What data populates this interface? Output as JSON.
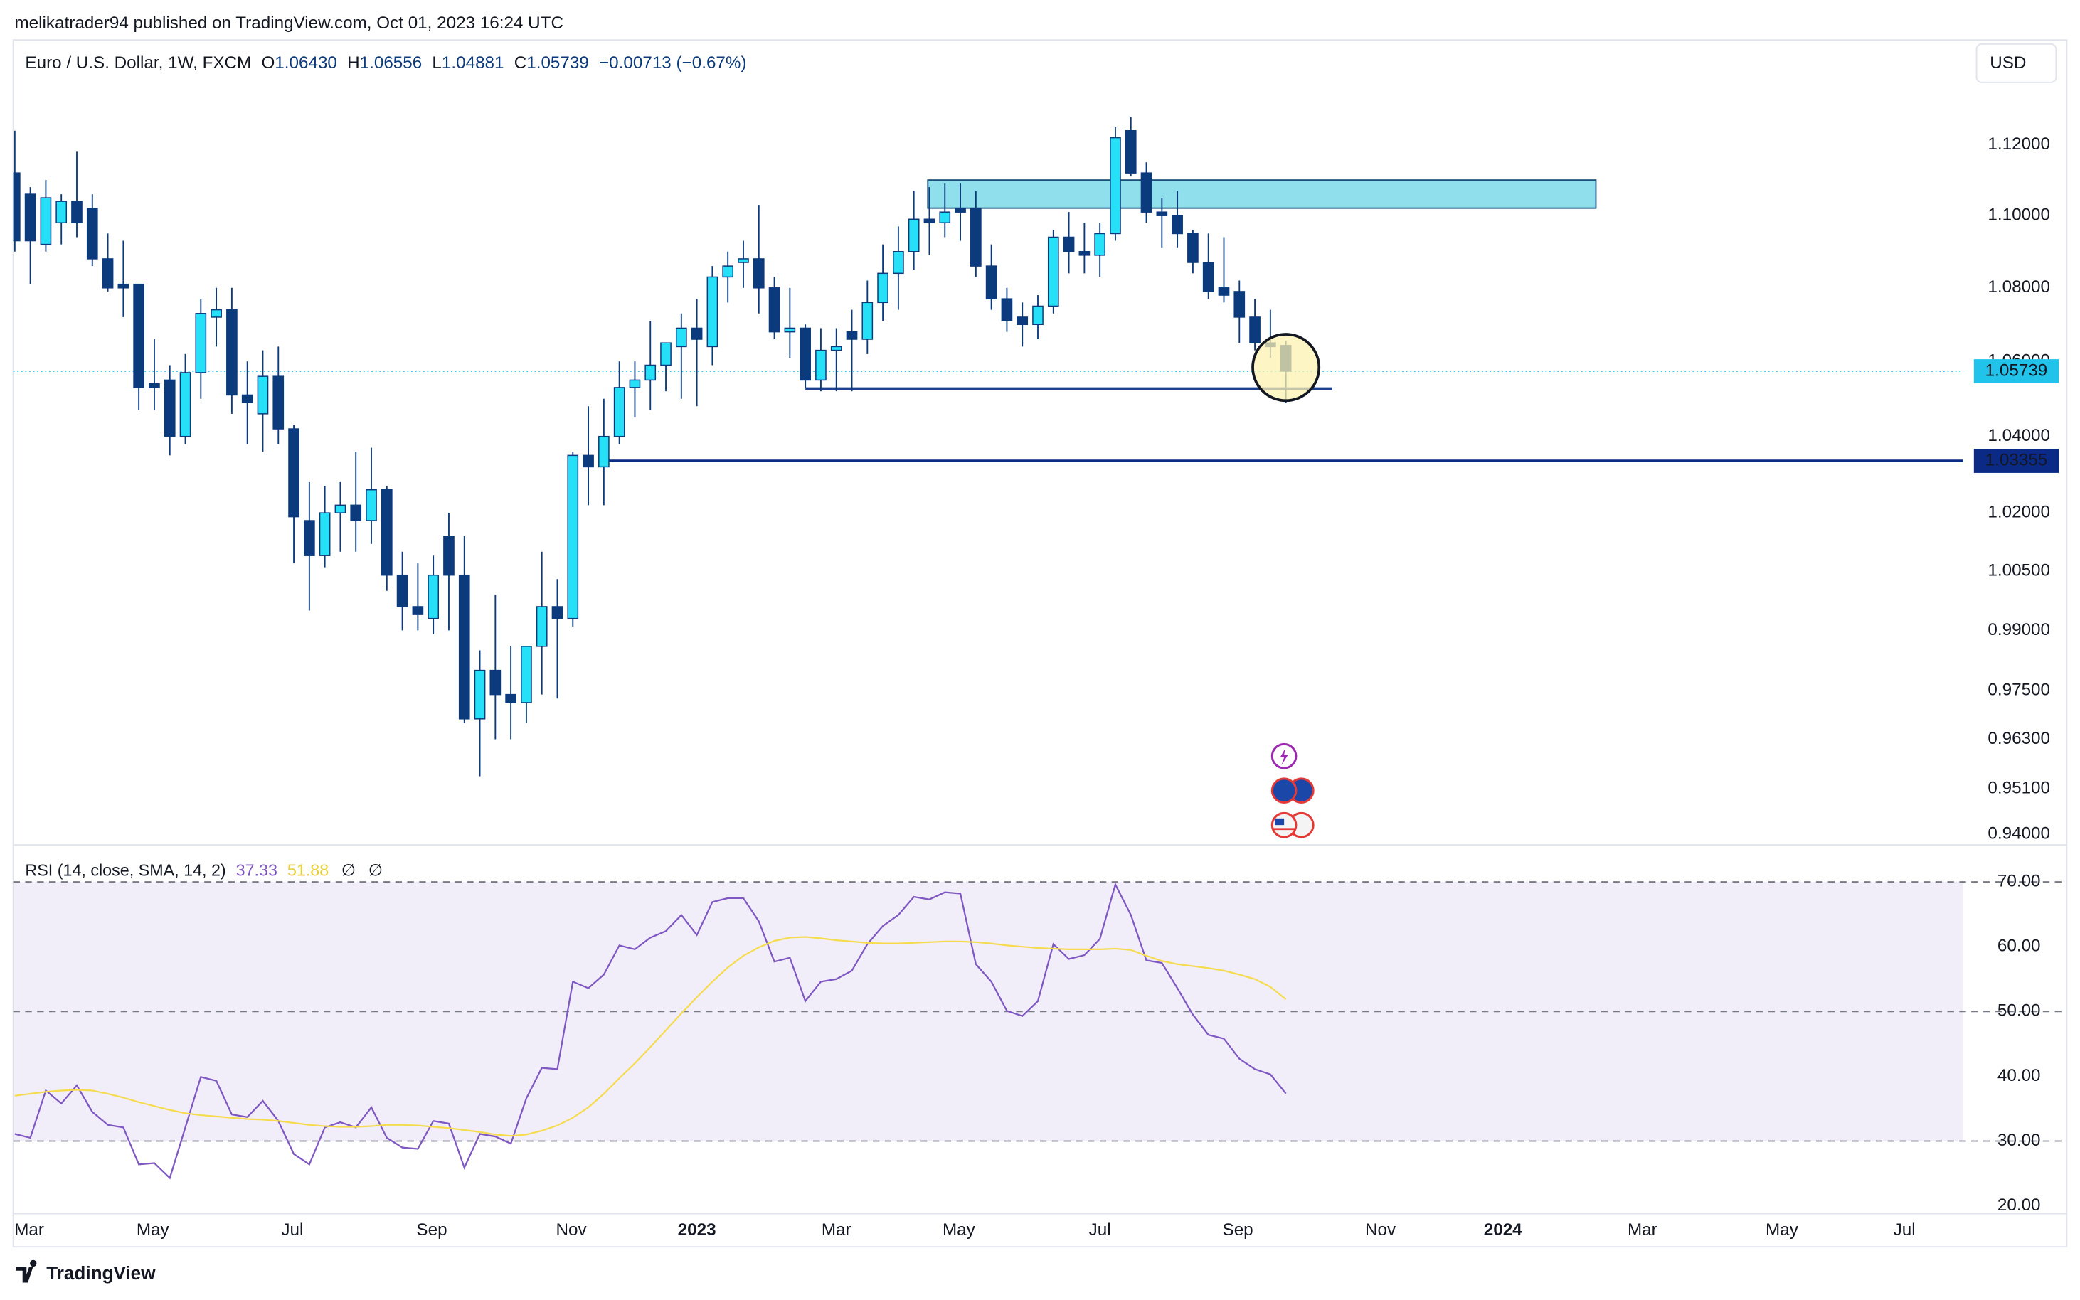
{
  "header": {
    "publisher": "melikatrader94 published on TradingView.com, Oct 01, 2023 16:24 UTC",
    "symbol": "Euro / U.S. Dollar, 1W, FXCM",
    "ohlc": [
      {
        "key": "O",
        "value": "1.06430"
      },
      {
        "key": "H",
        "value": "1.06556"
      },
      {
        "key": "L",
        "value": "1.04881"
      },
      {
        "key": "C",
        "value": "1.05739"
      }
    ],
    "change": "−0.00713 (−0.67%)",
    "currency": "USD",
    "footer": "TradingView"
  },
  "chart_data": [
    {
      "type": "candlestick",
      "log": true,
      "up_color": "#25e0f7",
      "down_color": "#0b3a7d",
      "ylim": [
        0.9378,
        1.1502
      ],
      "yticks": [
        {
          "value": 1.12,
          "label": "1.12000"
        },
        {
          "value": 1.1,
          "label": "1.10000"
        },
        {
          "value": 1.08,
          "label": "1.08000"
        },
        {
          "value": 1.06,
          "label": "1.06000"
        },
        {
          "value": 1.04,
          "label": "1.04000"
        },
        {
          "value": 1.02,
          "label": "1.02000"
        },
        {
          "value": 1.005,
          "label": "1.00500"
        },
        {
          "value": 0.99,
          "label": "0.99000"
        },
        {
          "value": 0.975,
          "label": "0.97500"
        },
        {
          "value": 0.963,
          "label": "0.96300"
        },
        {
          "value": 0.951,
          "label": "0.95100"
        },
        {
          "value": 0.94,
          "label": "0.94000"
        }
      ],
      "xlim": [
        -0.1,
        125.7
      ],
      "xticks": [
        {
          "value": 0.93,
          "label": "Mar"
        },
        {
          "value": 8.9,
          "label": "May"
        },
        {
          "value": 17.9,
          "label": "Jul"
        },
        {
          "value": 26.9,
          "label": "Sep"
        },
        {
          "value": 35.9,
          "label": "Nov"
        },
        {
          "value": 44.0,
          "label": "2023"
        },
        {
          "value": 53.0,
          "label": "Mar"
        },
        {
          "value": 60.9,
          "label": "May"
        },
        {
          "value": 70.0,
          "label": "Jul"
        },
        {
          "value": 78.9,
          "label": "Sep"
        },
        {
          "value": 88.1,
          "label": "Nov"
        },
        {
          "value": 96.0,
          "label": "2024"
        },
        {
          "value": 105.0,
          "label": "Mar"
        },
        {
          "value": 114.0,
          "label": "May"
        },
        {
          "value": 121.9,
          "label": "Jul"
        }
      ],
      "candles": [
        [
          1.112,
          1.124,
          1.09,
          1.093
        ],
        [
          1.106,
          1.108,
          1.081,
          1.093
        ],
        [
          1.092,
          1.11,
          1.09,
          1.105
        ],
        [
          1.098,
          1.106,
          1.092,
          1.104
        ],
        [
          1.104,
          1.118,
          1.094,
          1.098
        ],
        [
          1.102,
          1.106,
          1.086,
          1.088
        ],
        [
          1.088,
          1.095,
          1.079,
          1.08
        ],
        [
          1.081,
          1.093,
          1.072,
          1.08
        ],
        [
          1.081,
          1.081,
          1.047,
          1.053
        ],
        [
          1.054,
          1.066,
          1.047,
          1.053
        ],
        [
          1.055,
          1.059,
          1.035,
          1.04
        ],
        [
          1.04,
          1.062,
          1.038,
          1.057
        ],
        [
          1.057,
          1.077,
          1.05,
          1.073
        ],
        [
          1.072,
          1.08,
          1.064,
          1.074
        ],
        [
          1.074,
          1.08,
          1.046,
          1.051
        ],
        [
          1.051,
          1.06,
          1.038,
          1.049
        ],
        [
          1.046,
          1.063,
          1.036,
          1.056
        ],
        [
          1.056,
          1.064,
          1.038,
          1.042
        ],
        [
          1.042,
          1.043,
          1.007,
          1.019
        ],
        [
          1.018,
          1.028,
          0.995,
          1.009
        ],
        [
          1.009,
          1.027,
          1.006,
          1.02
        ],
        [
          1.02,
          1.028,
          1.01,
          1.022
        ],
        [
          1.022,
          1.036,
          1.01,
          1.018
        ],
        [
          1.018,
          1.037,
          1.012,
          1.026
        ],
        [
          1.026,
          1.027,
          1.0,
          1.004
        ],
        [
          1.004,
          1.01,
          0.99,
          0.996
        ],
        [
          0.996,
          1.007,
          0.99,
          0.994
        ],
        [
          0.993,
          1.009,
          0.989,
          1.004
        ],
        [
          1.014,
          1.02,
          0.99,
          1.004
        ],
        [
          1.004,
          1.014,
          0.967,
          0.968
        ],
        [
          0.968,
          0.985,
          0.954,
          0.98
        ],
        [
          0.98,
          0.999,
          0.963,
          0.974
        ],
        [
          0.974,
          0.986,
          0.963,
          0.972
        ],
        [
          0.972,
          0.986,
          0.967,
          0.986
        ],
        [
          0.986,
          1.01,
          0.974,
          0.996
        ],
        [
          0.996,
          1.003,
          0.973,
          0.993
        ],
        [
          0.993,
          1.036,
          0.991,
          1.035
        ],
        [
          1.035,
          1.048,
          1.022,
          1.032
        ],
        [
          1.032,
          1.05,
          1.022,
          1.04
        ],
        [
          1.04,
          1.06,
          1.038,
          1.053
        ],
        [
          1.053,
          1.06,
          1.045,
          1.055
        ],
        [
          1.055,
          1.071,
          1.047,
          1.059
        ],
        [
          1.059,
          1.064,
          1.052,
          1.065
        ],
        [
          1.064,
          1.073,
          1.05,
          1.069
        ],
        [
          1.069,
          1.077,
          1.048,
          1.066
        ],
        [
          1.064,
          1.086,
          1.059,
          1.083
        ],
        [
          1.083,
          1.09,
          1.076,
          1.086
        ],
        [
          1.087,
          1.093,
          1.08,
          1.088
        ],
        [
          1.088,
          1.103,
          1.073,
          1.08
        ],
        [
          1.08,
          1.083,
          1.066,
          1.068
        ],
        [
          1.068,
          1.08,
          1.061,
          1.069
        ],
        [
          1.069,
          1.07,
          1.053,
          1.055
        ],
        [
          1.055,
          1.069,
          1.052,
          1.063
        ],
        [
          1.063,
          1.069,
          1.052,
          1.064
        ],
        [
          1.068,
          1.074,
          1.052,
          1.066
        ],
        [
          1.066,
          1.082,
          1.062,
          1.076
        ],
        [
          1.076,
          1.092,
          1.071,
          1.084
        ],
        [
          1.084,
          1.097,
          1.074,
          1.09
        ],
        [
          1.09,
          1.107,
          1.085,
          1.099
        ],
        [
          1.099,
          1.108,
          1.089,
          1.098
        ],
        [
          1.098,
          1.109,
          1.094,
          1.101
        ],
        [
          1.102,
          1.109,
          1.093,
          1.101
        ],
        [
          1.102,
          1.107,
          1.083,
          1.086
        ],
        [
          1.086,
          1.092,
          1.074,
          1.077
        ],
        [
          1.077,
          1.08,
          1.068,
          1.071
        ],
        [
          1.072,
          1.076,
          1.064,
          1.07
        ],
        [
          1.07,
          1.078,
          1.066,
          1.075
        ],
        [
          1.075,
          1.096,
          1.073,
          1.094
        ],
        [
          1.094,
          1.101,
          1.084,
          1.09
        ],
        [
          1.09,
          1.098,
          1.084,
          1.089
        ],
        [
          1.089,
          1.098,
          1.083,
          1.095
        ],
        [
          1.095,
          1.125,
          1.093,
          1.122
        ],
        [
          1.124,
          1.128,
          1.111,
          1.112
        ],
        [
          1.112,
          1.115,
          1.098,
          1.101
        ],
        [
          1.101,
          1.105,
          1.091,
          1.1
        ],
        [
          1.1,
          1.107,
          1.091,
          1.095
        ],
        [
          1.095,
          1.096,
          1.084,
          1.087
        ],
        [
          1.087,
          1.095,
          1.077,
          1.079
        ],
        [
          1.08,
          1.094,
          1.076,
          1.078
        ],
        [
          1.079,
          1.082,
          1.065,
          1.072
        ],
        [
          1.072,
          1.077,
          1.063,
          1.065
        ],
        [
          1.065,
          1.074,
          1.061,
          1.064
        ],
        [
          1.0643,
          1.06556,
          1.04881,
          1.05739
        ]
      ],
      "zone": {
        "from": 58.9,
        "to": 102.0,
        "top": 1.11,
        "bottom": 1.1021,
        "color": "#8fe0ec"
      },
      "levels": [
        {
          "price": 1.0527,
          "from": 51.0,
          "to": 85.0,
          "color": "#1f3f8f"
        },
        {
          "price": 1.03355,
          "from": 38.0,
          "to": 125.7,
          "color": "#0b2a86",
          "label": "1.03355"
        }
      ],
      "last_price_color": "#22c3ea",
      "marker": {
        "index": 82,
        "price": 1.0584,
        "color": "#fdf1b0"
      }
    },
    {
      "type": "line",
      "title": "RSI (14, close, SMA, 14, 2)",
      "flags": [
        "∅",
        "∅"
      ],
      "ylim": [
        18.8,
        75.5
      ],
      "yticks": [
        {
          "value": 70,
          "label": "70.00"
        },
        {
          "value": 60,
          "label": "60.00"
        },
        {
          "value": 50,
          "label": "50.00"
        },
        {
          "value": 40,
          "label": "40.00"
        },
        {
          "value": 30,
          "label": "30.00"
        },
        {
          "value": 20,
          "label": "20.00"
        }
      ],
      "band": {
        "upper": 70,
        "middle": 50,
        "lower": 30,
        "color": "#7e57c2"
      },
      "series": [
        {
          "color": "#7e57c2",
          "values": [
            31.1,
            30.5,
            37.8,
            35.8,
            38.6,
            34.5,
            32.5,
            32.1,
            26.4,
            26.6,
            24.3,
            32.1,
            39.9,
            39.3,
            34.1,
            33.7,
            36.2,
            33.1,
            28.0,
            26.4,
            32.1,
            32.9,
            32.1,
            35.2,
            30.5,
            29.0,
            28.8,
            33.1,
            32.7,
            25.9,
            31.1,
            30.7,
            29.6,
            36.6,
            41.3,
            41.1,
            54.6,
            53.6,
            55.7,
            60.2,
            59.6,
            61.4,
            62.4,
            64.9,
            61.8,
            66.9,
            67.5,
            67.5,
            63.9,
            57.7,
            58.3,
            51.6,
            54.6,
            55.0,
            56.3,
            60.4,
            63.2,
            64.9,
            67.7,
            67.3,
            68.4,
            68.2,
            57.3,
            54.6,
            50.1,
            49.3,
            51.6,
            60.4,
            58.1,
            58.7,
            61.2,
            69.6,
            64.9,
            57.9,
            57.5,
            53.6,
            49.5,
            46.4,
            45.8,
            42.7,
            41.1,
            40.3,
            37.33
          ]
        },
        {
          "color": "#f5dc4f",
          "values": [
            37.0,
            37.3,
            37.6,
            37.8,
            37.9,
            37.8,
            37.3,
            36.7,
            36.0,
            35.4,
            34.8,
            34.3,
            34.0,
            33.8,
            33.6,
            33.4,
            33.3,
            33.1,
            32.8,
            32.5,
            32.3,
            32.2,
            32.2,
            32.3,
            32.5,
            32.5,
            32.4,
            32.2,
            32.0,
            31.7,
            31.4,
            31.0,
            30.8,
            31.0,
            31.6,
            32.4,
            33.6,
            35.2,
            37.3,
            39.7,
            42.0,
            44.5,
            47.1,
            49.7,
            52.2,
            54.6,
            56.8,
            58.6,
            59.9,
            60.9,
            61.4,
            61.5,
            61.3,
            61.0,
            60.8,
            60.6,
            60.5,
            60.5,
            60.6,
            60.7,
            60.8,
            60.8,
            60.7,
            60.5,
            60.2,
            60.0,
            59.8,
            59.7,
            59.6,
            59.6,
            59.6,
            59.7,
            59.5,
            58.6,
            57.8,
            57.3,
            57.0,
            56.7,
            56.3,
            55.7,
            55.0,
            53.8,
            51.88
          ]
        }
      ]
    }
  ]
}
